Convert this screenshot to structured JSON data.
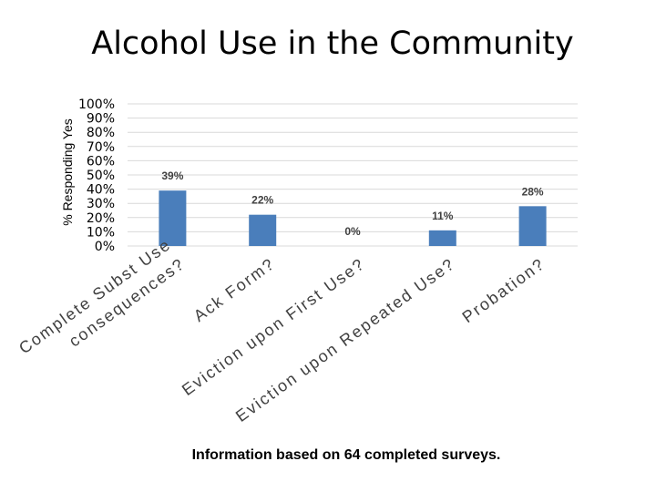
{
  "chart_data": {
    "type": "bar",
    "title": "Alcohol Use in the Community",
    "ylabel": "% Responding Yes",
    "xlabel": "",
    "ylim": [
      0,
      100
    ],
    "yticks": [
      "100%",
      "90%",
      "80%",
      "70%",
      "60%",
      "50%",
      "40%",
      "30%",
      "20%",
      "10%",
      "0%"
    ],
    "categories": [
      "Complete Subst Use consequences?",
      "Ack Form?",
      "Eviction upon First Use?",
      "Eviction upon Repeated Use?",
      "Probation?"
    ],
    "category_label_lines": [
      [
        "Complete Subst Use",
        "consequences?"
      ],
      [
        "Ack Form?"
      ],
      [
        "Eviction upon First Use?"
      ],
      [
        "Eviction upon Repeated Use?"
      ],
      [
        "Probation?"
      ]
    ],
    "values": [
      39,
      22,
      0,
      11,
      28
    ],
    "data_labels": [
      "39%",
      "22%",
      "0%",
      "11%",
      "28%"
    ],
    "grid": true,
    "bar_color": "#4a7ebb",
    "grid_color": "#d9d9d9"
  },
  "footnote": "Information based on 64 completed surveys."
}
